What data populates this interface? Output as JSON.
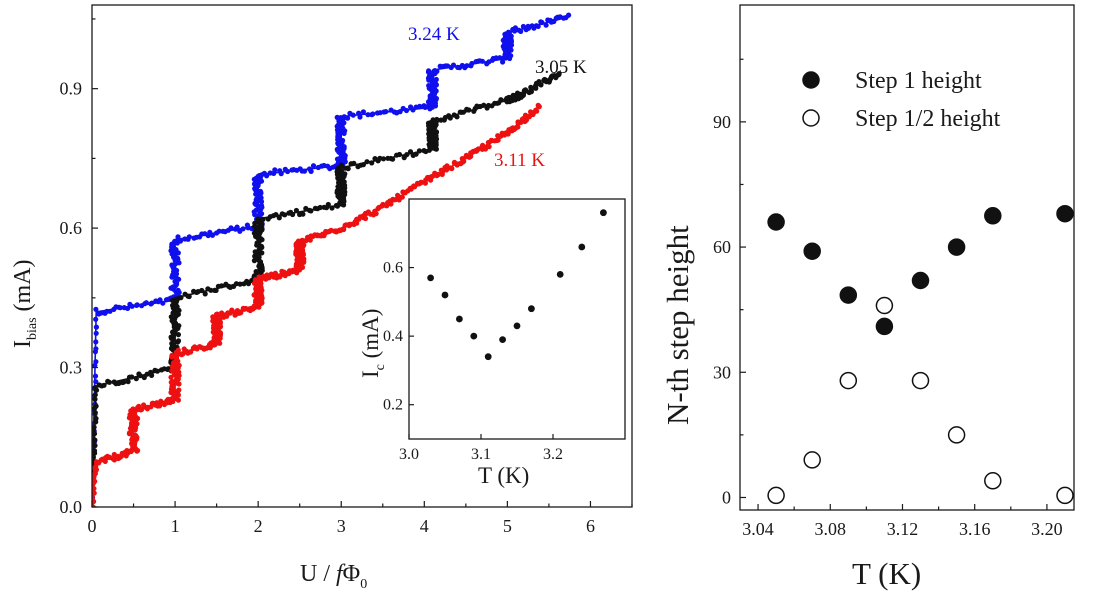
{
  "chart_data": [
    {
      "type": "scatter",
      "name": "iv-curves",
      "xlabel_main": "U / ",
      "xlabel_f": "f",
      "xlabel_phi": "Φ",
      "xlabel_sub": "0",
      "ylabel_main": "I",
      "ylabel_sub": "bias",
      "ylabel_unit": " (mA)",
      "xlim": [
        0,
        6.5
      ],
      "ylim": [
        0,
        1.08
      ],
      "xticks": [
        "0",
        "1",
        "2",
        "3",
        "4",
        "5",
        "6"
      ],
      "yticks": [
        "0.0",
        "0.3",
        "0.6",
        "0.9"
      ],
      "ytick_values": [
        0,
        0.3,
        0.6,
        0.9
      ],
      "grid": false,
      "series": [
        {
          "name": "3.24 K",
          "label": "3.24 K",
          "color": "#1010ee",
          "points": [
            [
              0,
              0
            ],
            [
              0.05,
              0.42
            ],
            [
              1.0,
              0.445
            ],
            [
              1.0,
              0.575
            ],
            [
              2.0,
              0.605
            ],
            [
              2.0,
              0.715
            ],
            [
              3.0,
              0.735
            ],
            [
              3.0,
              0.84
            ],
            [
              4.1,
              0.86
            ],
            [
              4.1,
              0.94
            ],
            [
              5.0,
              0.965
            ],
            [
              5.0,
              1.02
            ],
            [
              5.75,
              1.055
            ]
          ]
        },
        {
          "name": "3.05 K",
          "label": "3.05 K",
          "color": "#111111",
          "points": [
            [
              0,
              0
            ],
            [
              0.05,
              0.26
            ],
            [
              1.0,
              0.3
            ],
            [
              1.0,
              0.45
            ],
            [
              2.0,
              0.49
            ],
            [
              2.0,
              0.62
            ],
            [
              3.0,
              0.65
            ],
            [
              3.0,
              0.73
            ],
            [
              4.1,
              0.77
            ],
            [
              4.1,
              0.83
            ],
            [
              5.0,
              0.875
            ],
            [
              5.2,
              0.89
            ],
            [
              5.65,
              0.935
            ]
          ]
        },
        {
          "name": "3.11 K",
          "label": "3.11 K",
          "color": "#ee1111",
          "points": [
            [
              0,
              0
            ],
            [
              0.05,
              0.095
            ],
            [
              0.5,
              0.12
            ],
            [
              0.5,
              0.21
            ],
            [
              1.0,
              0.23
            ],
            [
              1.0,
              0.33
            ],
            [
              1.5,
              0.35
            ],
            [
              1.5,
              0.41
            ],
            [
              2.0,
              0.43
            ],
            [
              2.0,
              0.49
            ],
            [
              2.5,
              0.51
            ],
            [
              2.5,
              0.57
            ],
            [
              3.0,
              0.6
            ],
            [
              3.5,
              0.645
            ],
            [
              4.0,
              0.7
            ],
            [
              4.5,
              0.75
            ],
            [
              5.0,
              0.805
            ],
            [
              5.4,
              0.865
            ]
          ]
        }
      ]
    },
    {
      "type": "scatter",
      "name": "inset-ic",
      "xlabel": "T (K)",
      "ylabel_main": "I",
      "ylabel_sub": "c",
      "ylabel_unit": " (mA)",
      "xlim": [
        3.0,
        3.3
      ],
      "ylim": [
        0.1,
        0.8
      ],
      "xticks": [
        "3.0",
        "3.1",
        "3.2"
      ],
      "xtick_values": [
        3.0,
        3.1,
        3.2
      ],
      "yticks": [
        "0.2",
        "0.4",
        "0.6"
      ],
      "ytick_values": [
        0.2,
        0.4,
        0.6
      ],
      "x": [
        3.03,
        3.05,
        3.07,
        3.09,
        3.11,
        3.13,
        3.15,
        3.17,
        3.21,
        3.24,
        3.27
      ],
      "y": [
        0.57,
        0.52,
        0.45,
        0.4,
        0.34,
        0.39,
        0.43,
        0.48,
        0.58,
        0.66,
        0.76
      ]
    },
    {
      "type": "scatter",
      "name": "step-heights",
      "xlabel": "T (K)",
      "ylabel": "N-th step height",
      "xlim": [
        3.03,
        3.215
      ],
      "ylim": [
        -3,
        118
      ],
      "xticks": [
        "3.04",
        "3.06",
        "3.08",
        "3.10",
        "3.12",
        "3.14",
        "3.16",
        "3.18",
        "3.20"
      ],
      "xtick_values": [
        3.04,
        3.06,
        3.08,
        3.1,
        3.12,
        3.14,
        3.16,
        3.18,
        3.2
      ],
      "xtick_labeled": [
        true,
        false,
        true,
        false,
        true,
        false,
        true,
        false,
        true
      ],
      "yticks": [
        "0",
        "30",
        "60",
        "90"
      ],
      "ytick_values": [
        0,
        30,
        60,
        90
      ],
      "legend_position": "top-center",
      "series": [
        {
          "name": "Step 1 height",
          "legend": "Step  1   height",
          "marker": "filled-circle",
          "x": [
            3.05,
            3.07,
            3.09,
            3.11,
            3.13,
            3.15,
            3.17,
            3.21
          ],
          "y": [
            66,
            59,
            48.5,
            41,
            52,
            60,
            67.5,
            68
          ]
        },
        {
          "name": "Step 1/2 height",
          "legend": "Step 1/2 height",
          "marker": "open-circle",
          "x": [
            3.05,
            3.07,
            3.09,
            3.11,
            3.13,
            3.15,
            3.17,
            3.21
          ],
          "y": [
            0.5,
            9,
            28,
            46,
            28,
            15,
            4,
            0.5
          ]
        }
      ]
    }
  ]
}
